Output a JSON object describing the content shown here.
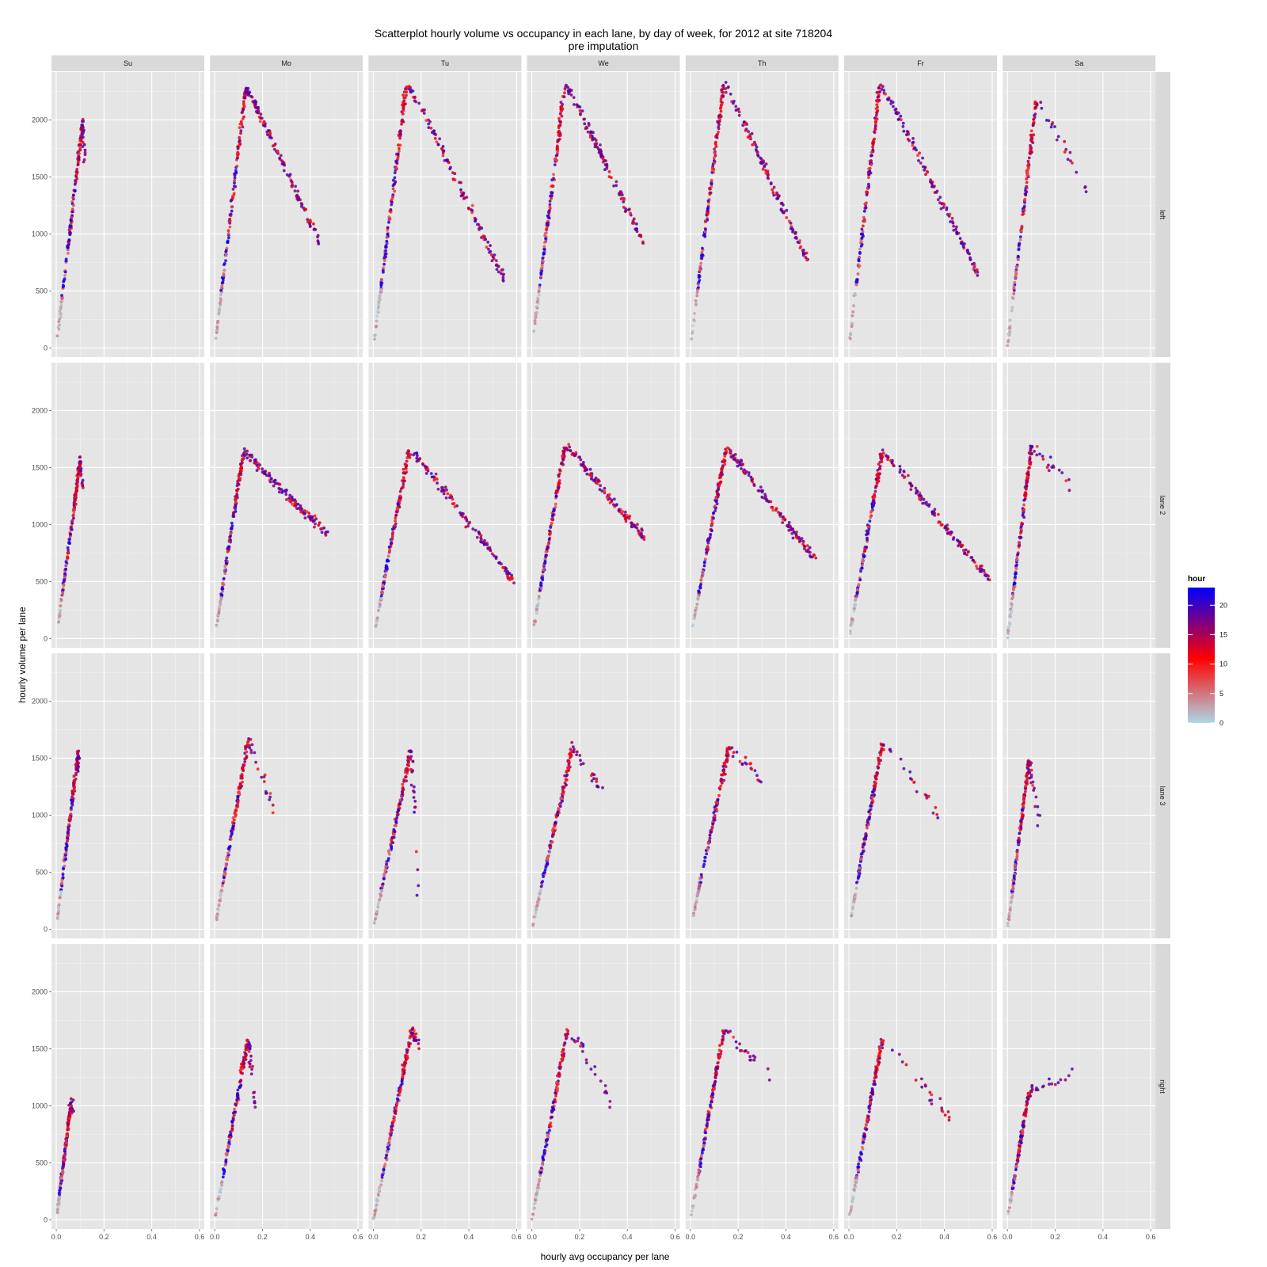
{
  "chart_data": {
    "type": "scatter",
    "title": "Scatterplot hourly volume vs occupancy in each lane, by day of week, for 2012 at site 718204",
    "subtitle": "pre imputation",
    "xlabel": "hourly avg occupancy per lane",
    "ylabel": "hourly volume per lane",
    "x_ticks": [
      "0.0",
      "0.2",
      "0.4",
      "0.6"
    ],
    "x_tick_values": [
      0,
      0.2,
      0.4,
      0.6
    ],
    "y_ticks": [
      "0",
      "500",
      "1000",
      "1500",
      "2000"
    ],
    "y_tick_values": [
      0,
      500,
      1000,
      1500,
      2000
    ],
    "xlim": [
      -0.02,
      0.62
    ],
    "ylim": [
      -80,
      2420
    ],
    "grid": true,
    "columns": [
      "Su",
      "Mo",
      "Tu",
      "We",
      "Th",
      "Fr",
      "Sa"
    ],
    "rows": [
      "left",
      "lane 2",
      "lane 3",
      "right"
    ],
    "color_scale": {
      "title": "hour",
      "ticks": [
        "0",
        "5",
        "10",
        "15",
        "20"
      ],
      "tick_values": [
        0,
        5,
        10,
        15,
        20
      ],
      "range": [
        0,
        23
      ],
      "stops": [
        {
          "value": 0,
          "color": "#add8e6"
        },
        {
          "value": 11,
          "color": "#ff0000"
        },
        {
          "value": 23,
          "color": "#0000ff"
        }
      ]
    },
    "legend_position": "right",
    "panels": {
      "left": {
        "Su": {
          "peak_x": 0.11,
          "peak_y": 1980,
          "max_x": 0.12,
          "end_y": 1650,
          "start_y": 100,
          "cong": false
        },
        "Mo": {
          "peak_x": 0.13,
          "peak_y": 2280,
          "max_x": 0.44,
          "end_y": 920,
          "start_y": 70,
          "cong": true
        },
        "Tu": {
          "peak_x": 0.14,
          "peak_y": 2330,
          "max_x": 0.55,
          "end_y": 600,
          "start_y": 70,
          "cong": true
        },
        "We": {
          "peak_x": 0.14,
          "peak_y": 2320,
          "max_x": 0.47,
          "end_y": 920,
          "start_y": 70,
          "cong": true
        },
        "Th": {
          "peak_x": 0.14,
          "peak_y": 2320,
          "max_x": 0.49,
          "end_y": 760,
          "start_y": 70,
          "cong": true
        },
        "Fr": {
          "peak_x": 0.13,
          "peak_y": 2310,
          "max_x": 0.54,
          "end_y": 640,
          "start_y": 10,
          "cong": true
        },
        "Sa": {
          "peak_x": 0.12,
          "peak_y": 2160,
          "max_x": 0.33,
          "end_y": 1350,
          "start_y": 0,
          "cong": false
        }
      },
      "lane 2": {
        "Su": {
          "peak_x": 0.1,
          "peak_y": 1550,
          "max_x": 0.11,
          "end_y": 1300,
          "start_y": 130,
          "cong": false
        },
        "Mo": {
          "peak_x": 0.12,
          "peak_y": 1640,
          "max_x": 0.47,
          "end_y": 930,
          "start_y": 90,
          "cong": true
        },
        "Tu": {
          "peak_x": 0.15,
          "peak_y": 1670,
          "max_x": 0.59,
          "end_y": 500,
          "start_y": 90,
          "cong": true
        },
        "We": {
          "peak_x": 0.14,
          "peak_y": 1700,
          "max_x": 0.47,
          "end_y": 890,
          "start_y": 90,
          "cong": true
        },
        "Th": {
          "peak_x": 0.15,
          "peak_y": 1670,
          "max_x": 0.52,
          "end_y": 710,
          "start_y": 90,
          "cong": true
        },
        "Fr": {
          "peak_x": 0.14,
          "peak_y": 1640,
          "max_x": 0.59,
          "end_y": 520,
          "start_y": 0,
          "cong": true
        },
        "Sa": {
          "peak_x": 0.1,
          "peak_y": 1670,
          "max_x": 0.27,
          "end_y": 1320,
          "start_y": 0,
          "cong": false
        }
      },
      "lane 3": {
        "Su": {
          "peak_x": 0.09,
          "peak_y": 1520,
          "max_x": 0.09,
          "end_y": 1400,
          "start_y": 80,
          "cong": false
        },
        "Mo": {
          "peak_x": 0.14,
          "peak_y": 1660,
          "max_x": 0.25,
          "end_y": 1010,
          "start_y": 80,
          "cong": false
        },
        "Tu": {
          "peak_x": 0.16,
          "peak_y": 1580,
          "max_x": 0.19,
          "end_y": 170,
          "start_y": 30,
          "cong": false
        },
        "We": {
          "peak_x": 0.17,
          "peak_y": 1590,
          "max_x": 0.32,
          "end_y": 1110,
          "start_y": 20,
          "cong": false
        },
        "Th": {
          "peak_x": 0.16,
          "peak_y": 1590,
          "max_x": 0.3,
          "end_y": 1300,
          "start_y": 90,
          "cong": false
        },
        "Fr": {
          "peak_x": 0.14,
          "peak_y": 1640,
          "max_x": 0.38,
          "end_y": 970,
          "start_y": 110,
          "cong": false
        },
        "Sa": {
          "peak_x": 0.09,
          "peak_y": 1470,
          "max_x": 0.13,
          "end_y": 950,
          "start_y": 20,
          "cong": false
        }
      },
      "right": {
        "Su": {
          "peak_x": 0.06,
          "peak_y": 990,
          "max_x": 0.07,
          "end_y": 980,
          "start_y": 40,
          "cong": false
        },
        "Mo": {
          "peak_x": 0.14,
          "peak_y": 1590,
          "max_x": 0.17,
          "end_y": 890,
          "start_y": 40,
          "cong": false
        },
        "Tu": {
          "peak_x": 0.16,
          "peak_y": 1650,
          "max_x": 0.19,
          "end_y": 1540,
          "start_y": 0,
          "cong": false
        },
        "We": {
          "peak_x": 0.15,
          "peak_y": 1670,
          "max_x": 0.35,
          "end_y": 960,
          "start_y": 0,
          "cong": false
        },
        "Th": {
          "peak_x": 0.14,
          "peak_y": 1660,
          "max_x": 0.34,
          "end_y": 1250,
          "start_y": 40,
          "cong": false
        },
        "Fr": {
          "peak_x": 0.14,
          "peak_y": 1590,
          "max_x": 0.43,
          "end_y": 860,
          "start_y": 40,
          "cong": false
        },
        "Sa": {
          "peak_x": 0.09,
          "peak_y": 1120,
          "max_x": 0.27,
          "end_y": 1280,
          "start_y": 40,
          "cong": false
        }
      }
    }
  }
}
